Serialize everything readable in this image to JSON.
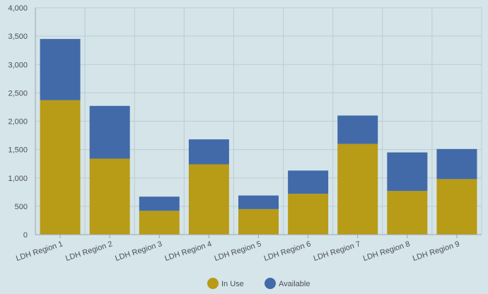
{
  "chart_data": {
    "type": "bar",
    "stacked": true,
    "categories": [
      "LDH Region 1",
      "LDH Region 2",
      "LDH Region 3",
      "LDH Region 4",
      "LDH Region 5",
      "LDH Region 6",
      "LDH Region 7",
      "LDH Region 8",
      "LDH Region 9"
    ],
    "series": [
      {
        "name": "In Use",
        "color": "#b89b17",
        "values": [
          2370,
          1340,
          420,
          1240,
          450,
          720,
          1600,
          770,
          980
        ]
      },
      {
        "name": "Available",
        "color": "#426aa8",
        "values": [
          1080,
          930,
          250,
          440,
          240,
          410,
          500,
          680,
          530
        ]
      }
    ],
    "ylim": [
      0,
      4000
    ],
    "yticks": [
      0,
      500,
      1000,
      1500,
      2000,
      2500,
      3000,
      3500,
      4000
    ],
    "ytick_labels": [
      "0",
      "500",
      "1,000",
      "1,500",
      "2,000",
      "2,500",
      "3,000",
      "3,500",
      "4,000"
    ],
    "grid": true,
    "legend_position": "bottom-center",
    "title": "",
    "xlabel": "",
    "ylabel": ""
  }
}
